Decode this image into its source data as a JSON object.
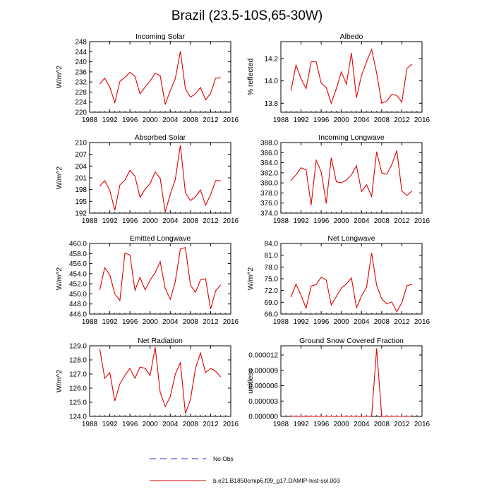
{
  "title": "Brazil (23.5-10S,65-30W)",
  "series_color": "#e00000",
  "obs_color": "#3333aa",
  "legend": {
    "obs_label": "No Obs",
    "model_label": "b.e21.B1850cmip6.f09_g17.DAMIP-hist-sol.003"
  },
  "chart_data": [
    {
      "type": "line",
      "title": "Incoming Solar",
      "ylabel": "W/m^2",
      "xlim": [
        1988,
        2016
      ],
      "xticks": [
        "1988",
        "1992",
        "1996",
        "2000",
        "2004",
        "2008",
        "2012",
        "2016"
      ],
      "ylim": [
        220,
        248
      ],
      "yticks": [
        "220",
        "224",
        "228",
        "232",
        "236",
        "240",
        "244",
        "248"
      ],
      "grid": false,
      "x": [
        1990,
        1991,
        1992,
        1993,
        1994,
        1995,
        1996,
        1997,
        1998,
        1999,
        2000,
        2001,
        2002,
        2003,
        2004,
        2005,
        2006,
        2007,
        2008,
        2009,
        2010,
        2011,
        2012,
        2013,
        2014
      ],
      "y": [
        231.2,
        233.5,
        230.0,
        223.8,
        232.2,
        233.8,
        235.8,
        234.2,
        227.3,
        230.0,
        232.3,
        235.5,
        234.5,
        223.2,
        228.5,
        233.3,
        244.2,
        229.3,
        226.0,
        227.3,
        229.8,
        224.9,
        227.5,
        233.5,
        233.7
      ]
    },
    {
      "type": "line",
      "title": "Albedo",
      "ylabel": "% reflected",
      "xlim": [
        1988,
        2016
      ],
      "xticks": [
        "1988",
        "1992",
        "1996",
        "2000",
        "2004",
        "2008",
        "2012",
        "2016"
      ],
      "ylim": [
        13.72,
        14.35
      ],
      "yticks": [
        "13.8",
        "14.0",
        "14.2"
      ],
      "grid": false,
      "x": [
        1990,
        1991,
        1992,
        1993,
        1994,
        1995,
        1996,
        1997,
        1998,
        1999,
        2000,
        2001,
        2002,
        2003,
        2004,
        2005,
        2006,
        2007,
        2008,
        2009,
        2010,
        2011,
        2012,
        2013,
        2014
      ],
      "y": [
        13.91,
        14.14,
        14.02,
        13.93,
        14.17,
        14.17,
        13.98,
        13.94,
        13.8,
        13.93,
        14.08,
        13.97,
        14.25,
        13.85,
        14.05,
        14.17,
        14.28,
        14.07,
        13.8,
        13.82,
        13.88,
        13.87,
        13.81,
        14.11,
        14.15
      ]
    },
    {
      "type": "line",
      "title": "Absorbed Solar",
      "ylabel": "W/m^2",
      "xlim": [
        1988,
        2016
      ],
      "xticks": [
        "1988",
        "1992",
        "1996",
        "2000",
        "2004",
        "2008",
        "2012",
        "2016"
      ],
      "ylim": [
        192,
        210
      ],
      "yticks": [
        "192",
        "195",
        "198",
        "201",
        "204",
        "207",
        "210"
      ],
      "grid": false,
      "x": [
        1990,
        1991,
        1992,
        1993,
        1994,
        1995,
        1996,
        1997,
        1998,
        1999,
        2000,
        2001,
        2002,
        2003,
        2004,
        2005,
        2006,
        2007,
        2008,
        2009,
        2010,
        2011,
        2012,
        2013,
        2014
      ],
      "y": [
        198.9,
        200.3,
        197.8,
        192.7,
        199.2,
        200.4,
        202.9,
        201.4,
        196.0,
        198.1,
        199.6,
        202.5,
        200.9,
        192.3,
        196.8,
        200.6,
        209.3,
        197.2,
        195.2,
        196.2,
        197.9,
        194.0,
        196.7,
        200.3,
        200.3
      ]
    },
    {
      "type": "line",
      "title": "Incoming Longwave",
      "ylabel": "",
      "xlim": [
        1988,
        2016
      ],
      "xticks": [
        "1988",
        "1992",
        "1996",
        "2000",
        "2004",
        "2008",
        "2012",
        "2016"
      ],
      "ylim": [
        374,
        388
      ],
      "yticks": [
        "374.0",
        "376.0",
        "378.0",
        "380.0",
        "382.0",
        "384.0",
        "386.0",
        "388.0"
      ],
      "grid": false,
      "x": [
        1990,
        1991,
        1992,
        1993,
        1994,
        1995,
        1996,
        1997,
        1998,
        1999,
        2000,
        2001,
        2002,
        2003,
        2004,
        2005,
        2006,
        2007,
        2008,
        2009,
        2010,
        2011,
        2012,
        2013,
        2014
      ],
      "y": [
        380.5,
        381.6,
        383.0,
        382.6,
        375.6,
        384.5,
        382.2,
        375.9,
        385.0,
        380.2,
        380.0,
        380.6,
        381.6,
        383.4,
        378.3,
        379.6,
        377.3,
        386.2,
        382.0,
        381.7,
        383.6,
        386.4,
        378.4,
        377.5,
        378.4
      ]
    },
    {
      "type": "line",
      "title": "Emitted Longwave",
      "ylabel": "W/m^2",
      "xlim": [
        1988,
        2016
      ],
      "xticks": [
        "1988",
        "1992",
        "1996",
        "2000",
        "2004",
        "2008",
        "2012",
        "2016"
      ],
      "ylim": [
        446,
        460
      ],
      "yticks": [
        "446.0",
        "448.0",
        "450.0",
        "452.0",
        "454.0",
        "456.0",
        "458.0",
        "460.0"
      ],
      "grid": false,
      "x": [
        1990,
        1991,
        1992,
        1993,
        1994,
        1995,
        1996,
        1997,
        1998,
        1999,
        2000,
        2001,
        2002,
        2003,
        2004,
        2005,
        2006,
        2007,
        2008,
        2009,
        2010,
        2011,
        2012,
        2013,
        2014
      ],
      "y": [
        450.8,
        455.2,
        453.8,
        450.0,
        448.7,
        458.1,
        457.7,
        450.7,
        453.3,
        450.8,
        452.7,
        454.2,
        456.4,
        451.1,
        448.9,
        452.5,
        458.9,
        459.2,
        451.7,
        450.3,
        452.8,
        453.0,
        447.0,
        450.6,
        451.8
      ]
    },
    {
      "type": "line",
      "title": "Net Longwave",
      "ylabel": "W/m^2",
      "xlim": [
        1988,
        2016
      ],
      "xticks": [
        "1988",
        "1992",
        "1996",
        "2000",
        "2004",
        "2008",
        "2012",
        "2016"
      ],
      "ylim": [
        66,
        84
      ],
      "yticks": [
        "66.0",
        "69.0",
        "72.0",
        "75.0",
        "78.0",
        "81.0",
        "84.0"
      ],
      "grid": false,
      "x": [
        1990,
        1991,
        1992,
        1993,
        1994,
        1995,
        1996,
        1997,
        1998,
        1999,
        2000,
        2001,
        2002,
        2003,
        2004,
        2005,
        2006,
        2007,
        2008,
        2009,
        2010,
        2011,
        2012,
        2013,
        2014
      ],
      "y": [
        70.3,
        73.6,
        70.8,
        67.5,
        73.1,
        73.5,
        75.4,
        74.7,
        68.3,
        70.5,
        72.6,
        73.7,
        75.2,
        67.6,
        70.6,
        72.8,
        81.6,
        73.3,
        69.9,
        68.6,
        69.1,
        66.6,
        68.9,
        73.2,
        73.6
      ]
    },
    {
      "type": "line",
      "title": "Net Radiation",
      "ylabel": "W/m^2",
      "xlim": [
        1988,
        2016
      ],
      "xticks": [
        "1988",
        "1992",
        "1996",
        "2000",
        "2004",
        "2008",
        "2012",
        "2016"
      ],
      "ylim": [
        124,
        129
      ],
      "yticks": [
        "124.0",
        "125.0",
        "126.0",
        "127.0",
        "128.0",
        "129.0"
      ],
      "grid": false,
      "x": [
        1990,
        1991,
        1992,
        1993,
        1994,
        1995,
        1996,
        1997,
        1998,
        1999,
        2000,
        2001,
        2002,
        2003,
        2004,
        2005,
        2006,
        2007,
        2008,
        2009,
        2010,
        2011,
        2012,
        2013,
        2014
      ],
      "y": [
        128.8,
        126.7,
        127.1,
        125.1,
        126.3,
        126.9,
        127.4,
        126.7,
        127.5,
        127.4,
        126.9,
        128.9,
        125.7,
        124.7,
        125.4,
        127.0,
        127.8,
        124.2,
        125.2,
        127.4,
        128.5,
        127.1,
        127.4,
        127.2,
        126.8
      ]
    },
    {
      "type": "line",
      "title": "Ground Snow Covered Fraction",
      "ylabel": "unitless",
      "xlim": [
        1988,
        2016
      ],
      "xticks": [
        "1988",
        "1992",
        "1996",
        "2000",
        "2004",
        "2008",
        "2012",
        "2016"
      ],
      "ylim": [
        0,
        1.38e-05
      ],
      "yticks": [
        "0.000000",
        "0.000003",
        "0.000006",
        "0.000009",
        "0.000012"
      ],
      "grid": false,
      "x": [
        1990,
        1991,
        1992,
        1993,
        1994,
        1995,
        1996,
        1997,
        1998,
        1999,
        2000,
        2001,
        2002,
        2003,
        2004,
        2005,
        2006,
        2007,
        2008,
        2009,
        2010,
        2011,
        2012,
        2013,
        2014
      ],
      "y": [
        0,
        0,
        0,
        3e-08,
        0,
        0,
        0,
        0,
        0,
        0,
        0,
        0,
        0,
        0,
        0,
        0,
        0,
        1.33e-05,
        0,
        0,
        0,
        0,
        0,
        0,
        0
      ]
    }
  ]
}
